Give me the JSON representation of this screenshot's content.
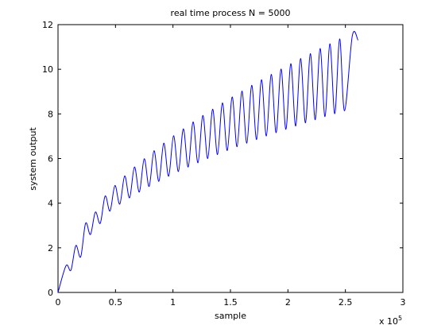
{
  "chart_data": {
    "type": "line",
    "title": "real time process N = 5000",
    "x_label": "sample",
    "y_label": "system output",
    "x_multiplier": {
      "base": "x 10",
      "exponent": "5"
    },
    "xlim": [
      0,
      3
    ],
    "ylim": [
      0,
      12
    ],
    "xticks": [
      0,
      0.5,
      1,
      1.5,
      2,
      2.5,
      3
    ],
    "yticks": [
      0,
      2,
      4,
      6,
      8,
      10,
      12
    ],
    "grid": false,
    "series": [
      {
        "color": "#0000ff",
        "x": [
          0,
          0.07,
          0.1125,
          0.155,
          0.1975,
          0.24,
          0.2825,
          0.325,
          0.3675,
          0.41,
          0.4525,
          0.495,
          0.5375,
          0.58,
          0.6225,
          0.665,
          0.7075,
          0.75,
          0.7925,
          0.835,
          0.8775,
          0.92,
          0.9625,
          1.005,
          1.0475,
          1.09,
          1.1325,
          1.175,
          1.2175,
          1.26,
          1.3025,
          1.345,
          1.3875,
          1.43,
          1.4725,
          1.515,
          1.5575,
          1.6,
          1.6425,
          1.685,
          1.7275,
          1.77,
          1.8125,
          1.855,
          1.8975,
          1.94,
          1.9825,
          2.025,
          2.0675,
          2.11,
          2.1525,
          2.195,
          2.2375,
          2.28,
          2.3225,
          2.365,
          2.4075,
          2.45,
          2.4925,
          2.56,
          2.61
        ],
        "values": [
          0,
          1.2,
          1.0,
          2.1,
          1.6,
          3.1,
          2.6,
          3.6,
          3.1,
          4.32,
          3.65,
          4.79,
          3.96,
          5.22,
          4.24,
          5.62,
          4.5,
          5.99,
          4.75,
          6.35,
          4.98,
          6.69,
          5.21,
          7.02,
          5.42,
          7.33,
          5.62,
          7.64,
          5.81,
          7.93,
          6.0,
          8.21,
          6.18,
          8.49,
          6.36,
          8.76,
          6.53,
          9.02,
          6.69,
          9.28,
          6.85,
          9.53,
          7.01,
          9.77,
          7.16,
          10.01,
          7.31,
          10.25,
          7.46,
          10.48,
          7.6,
          10.7,
          7.74,
          10.93,
          7.88,
          11.14,
          8.01,
          11.36,
          8.14,
          11.5,
          11.3
        ]
      }
    ]
  }
}
